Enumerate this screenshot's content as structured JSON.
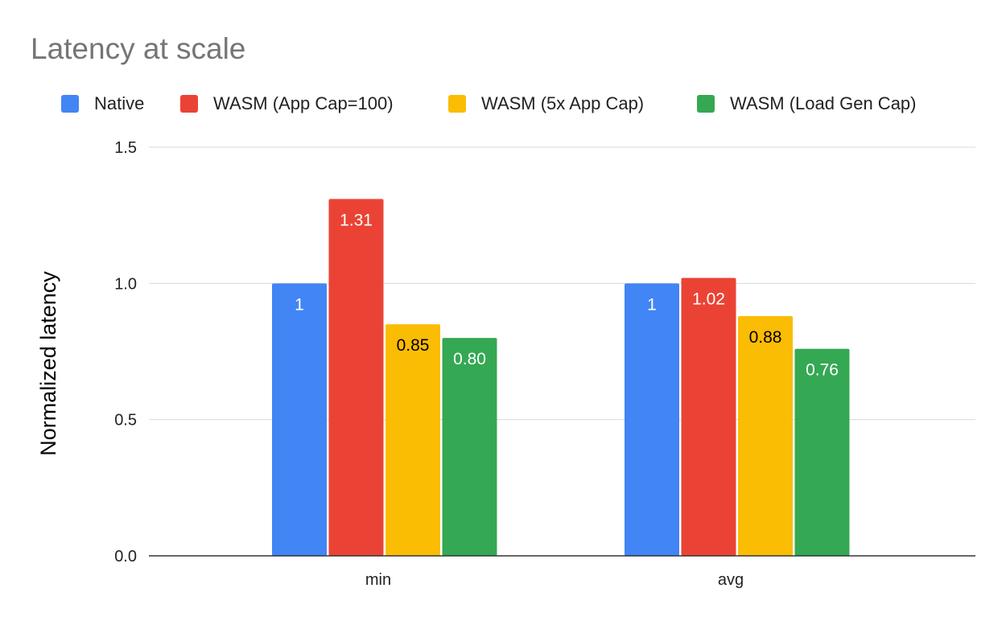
{
  "chart_data": {
    "type": "bar",
    "title": "Latency at scale",
    "xlabel": "",
    "ylabel": "Normalized latency",
    "ylim": [
      0,
      1.5
    ],
    "yticks": [
      "0.0",
      "0.5",
      "1.0",
      "1.5"
    ],
    "grid": true,
    "legend_position": "top",
    "categories": [
      "min",
      "avg"
    ],
    "series": [
      {
        "name": "Native",
        "color": "#4285f4",
        "label_color": "#ffffff",
        "values": [
          1,
          1
        ],
        "labels": [
          "1",
          "1"
        ]
      },
      {
        "name": "WASM (App Cap=100)",
        "color": "#ea4335",
        "label_color": "#ffffff",
        "values": [
          1.31,
          1.02
        ],
        "labels": [
          "1.31",
          "1.02"
        ]
      },
      {
        "name": "WASM (5x App Cap)",
        "color": "#fbbc04",
        "label_color": "#000000",
        "values": [
          0.85,
          0.88
        ],
        "labels": [
          "0.85",
          "0.88"
        ]
      },
      {
        "name": "WASM (Load Gen Cap)",
        "color": "#34a853",
        "label_color": "#ffffff",
        "values": [
          0.8,
          0.76
        ],
        "labels": [
          "0.80",
          "0.76"
        ]
      }
    ]
  }
}
